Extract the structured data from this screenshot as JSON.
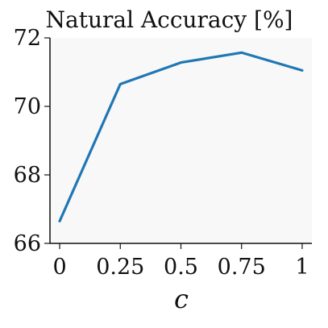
{
  "chart_data": {
    "type": "line",
    "title": "Natural Accuracy [%]",
    "xlabel": "c",
    "ylabel": "",
    "x": [
      0,
      0.25,
      0.5,
      0.75,
      1
    ],
    "x_tick_labels": [
      "0",
      "0.25",
      "0.5",
      "0.75",
      "1"
    ],
    "y_tick_values": [
      66,
      68,
      70,
      72
    ],
    "y_tick_labels": [
      "66",
      "68",
      "70",
      "72"
    ],
    "ylim": [
      66,
      72
    ],
    "xlim": [
      -0.04,
      1.04
    ],
    "series": [
      {
        "values": [
          66.65,
          70.65,
          71.28,
          71.57,
          71.05
        ],
        "color": "#1f77b4"
      }
    ],
    "grid": false,
    "plot_background": "#f8f8f8"
  }
}
